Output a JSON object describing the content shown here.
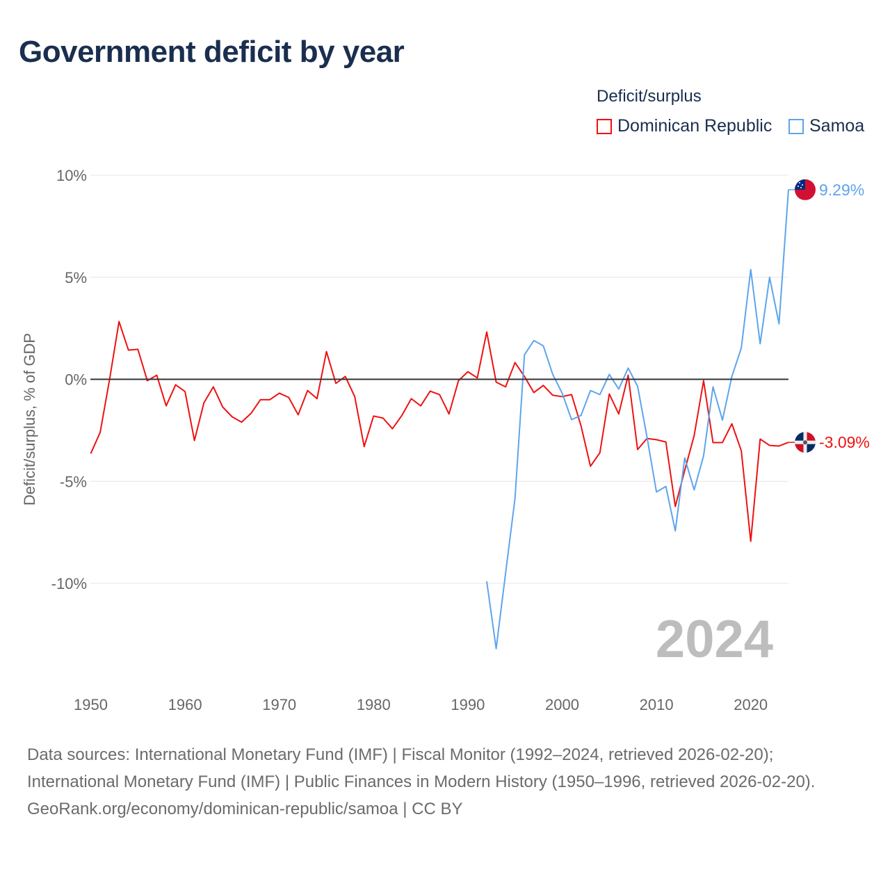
{
  "title": "Government deficit by year",
  "legend": {
    "title": "Deficit/surplus",
    "entries": [
      {
        "name": "Dominican Republic",
        "color": "#ee1111"
      },
      {
        "name": "Samoa",
        "color": "#5ca5ec"
      }
    ]
  },
  "year_label": "2024",
  "sources": {
    "line1": "Data sources: International Monetary Fund (IMF) | Fiscal Monitor (1992–2024, retrieved 2026-02-20);",
    "line2": "International Monetary Fund (IMF) | Public Finances in Modern History (1950–1996, retrieved 2026-02-20).",
    "line3": "GeoRank.org/economy/dominican-republic/samoa | CC BY"
  },
  "chart_data": {
    "type": "line",
    "title": "Government deficit by year",
    "xlabel": "",
    "ylabel": "Deficit/surplus, % of GDP",
    "xlim": [
      1950,
      2024
    ],
    "ylim": [
      -14.5,
      10.5
    ],
    "x_ticks": [
      1950,
      1960,
      1970,
      1980,
      1990,
      2000,
      2010,
      2020
    ],
    "x_tick_labels": [
      "1950",
      "1960",
      "1970",
      "1980",
      "1990",
      "2000",
      "2010",
      "2020"
    ],
    "y_ticks": [
      10,
      5,
      0,
      -5,
      -10
    ],
    "y_tick_labels": [
      "10%",
      "5%",
      "0%",
      "-5%",
      "-10%"
    ],
    "grid": true,
    "legend_position": "top-right",
    "series": [
      {
        "name": "Dominican Republic",
        "color": "#ee1111",
        "start_year": 1950,
        "end_label": "-3.09%",
        "values": [
          -3.64,
          -2.6,
          0,
          2.83,
          1.43,
          1.47,
          -0.07,
          0.2,
          -1.3,
          -0.27,
          -0.6,
          -3.0,
          -1.16,
          -0.37,
          -1.36,
          -1.84,
          -2.1,
          -1.67,
          -1.0,
          -1.0,
          -0.68,
          -0.89,
          -1.74,
          -0.55,
          -0.95,
          1.36,
          -0.2,
          0.14,
          -0.85,
          -3.3,
          -1.8,
          -1.9,
          -2.42,
          -1.77,
          -0.95,
          -1.3,
          -0.58,
          -0.75,
          -1.7,
          -0.07,
          0.37,
          0.07,
          2.32,
          -0.14,
          -0.37,
          0.82,
          0.14,
          -0.65,
          -0.3,
          -0.78,
          -0.85,
          -0.75,
          -2.28,
          -4.26,
          -3.6,
          -0.72,
          -1.7,
          0.2,
          -3.44,
          -2.9,
          -2.96,
          -3.07,
          -6.23,
          -4.46,
          -2.76,
          -0.07,
          -3.1,
          -3.1,
          -2.18,
          -3.5,
          -7.94,
          -2.93,
          -3.24,
          -3.27,
          -3.09
        ]
      },
      {
        "name": "Samoa",
        "color": "#5ca5ec",
        "start_year": 1992,
        "end_label": "9.29%",
        "values": [
          -9.9,
          -13.2,
          -9.5,
          -5.83,
          1.2,
          1.9,
          1.64,
          0.24,
          -0.68,
          -1.98,
          -1.77,
          -0.55,
          -0.75,
          0.24,
          -0.48,
          0.55,
          -0.34,
          -2.83,
          -5.52,
          -5.25,
          -7.43,
          -3.85,
          -5.42,
          -3.75,
          -0.37,
          -2.0,
          0.14,
          1.53,
          5.38,
          1.74,
          5.0,
          2.72,
          9.29
        ]
      }
    ]
  }
}
